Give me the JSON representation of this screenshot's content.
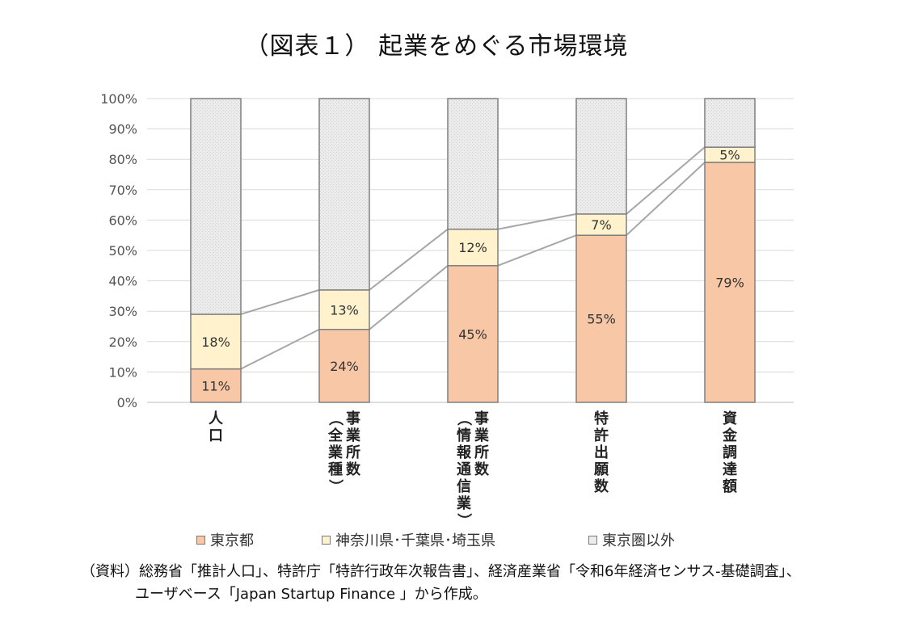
{
  "title": "（図表１） 起業をめぐる市場環境",
  "chart_data": {
    "type": "bar",
    "stacked": true,
    "percent": true,
    "categories": [
      "人口",
      "事業所数（全業種）",
      "事業所数（情報通信業）",
      "特許出願数",
      "資金調達額"
    ],
    "category_labels": [
      {
        "main": "人口",
        "sub": ""
      },
      {
        "main": "事業所数",
        "sub": "（全業種）"
      },
      {
        "main": "事業所数",
        "sub": "（情報通信業）"
      },
      {
        "main": "特許出願数",
        "sub": ""
      },
      {
        "main": "資金調達額",
        "sub": ""
      }
    ],
    "series": [
      {
        "name": "東京都",
        "values": [
          11,
          24,
          45,
          55,
          79
        ],
        "labels": [
          "11%",
          "24%",
          "45%",
          "55%",
          "79%"
        ],
        "color": "#f7c7a6"
      },
      {
        "name": "神奈川県･千葉県･埼玉県",
        "values": [
          18,
          13,
          12,
          7,
          5
        ],
        "labels": [
          "18%",
          "13%",
          "12%",
          "7%",
          "5%"
        ],
        "color": "#fff2cc"
      },
      {
        "name": "東京圏以外",
        "values": [
          71,
          63,
          43,
          38,
          16
        ],
        "labels": [
          "",
          "",
          "",
          "",
          ""
        ],
        "color": "#ececec"
      }
    ],
    "ylim": [
      0,
      100
    ],
    "yticks": [
      "0%",
      "10%",
      "20%",
      "30%",
      "40%",
      "50%",
      "60%",
      "70%",
      "80%",
      "90%",
      "100%"
    ],
    "grid": true,
    "connector_lines": true,
    "legend_position": "bottom"
  },
  "source_note": {
    "line1": "（資料）総務省「推計人口」、特許庁「特許行政年次報告書」、経済産業省「令和6年経済センサス-基礎調査」、",
    "line2": "ユーザベース「Japan Startup Finance 」から作成。"
  }
}
